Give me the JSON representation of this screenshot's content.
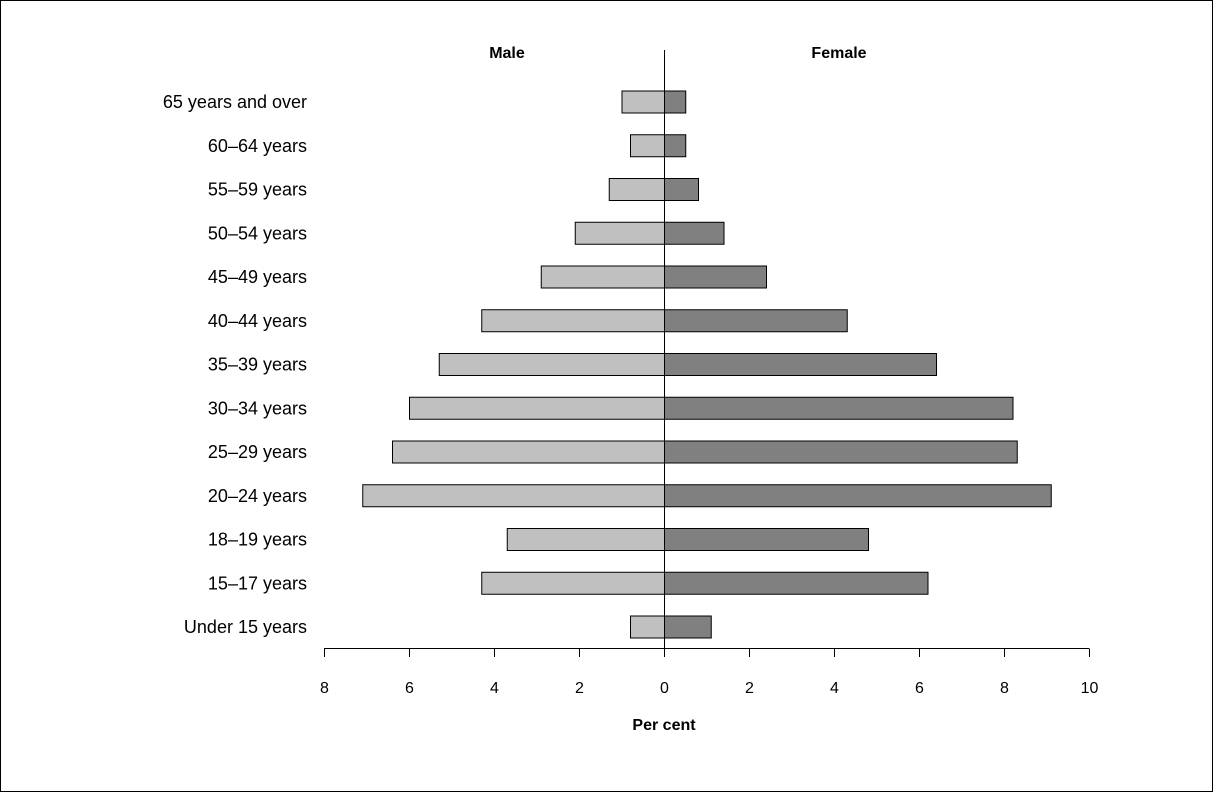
{
  "chart_data": {
    "type": "bar",
    "orientation": "horizontal",
    "layout": "population-pyramid",
    "xlabel": "Per cent",
    "categories": [
      "65 years and over",
      "60–64 years",
      "55–59 years",
      "50–54 years",
      "45–49 years",
      "40–44 years",
      "35–39 years",
      "30–34 years",
      "25–29 years",
      "20–24 years",
      "18–19 years",
      "15–17 years",
      "Under 15 years"
    ],
    "series": [
      {
        "name": "Male",
        "side": "left",
        "color": "#c0c0c0",
        "values": [
          1.0,
          0.8,
          1.3,
          2.1,
          2.9,
          4.3,
          5.3,
          6.0,
          6.4,
          7.1,
          3.7,
          4.3,
          0.8
        ]
      },
      {
        "name": "Female",
        "side": "right",
        "color": "#808080",
        "values": [
          0.5,
          0.5,
          0.8,
          1.4,
          2.4,
          4.3,
          6.4,
          8.2,
          8.3,
          9.1,
          4.8,
          6.2,
          1.1
        ]
      }
    ],
    "male_axis_ticks": [
      "8",
      "6",
      "4",
      "2"
    ],
    "zero_tick": "0",
    "female_axis_ticks": [
      "2",
      "4",
      "6",
      "8",
      "10"
    ],
    "xlim_male": [
      8,
      0
    ],
    "xlim_female": [
      0,
      10
    ],
    "grid": false,
    "legend": "none"
  }
}
